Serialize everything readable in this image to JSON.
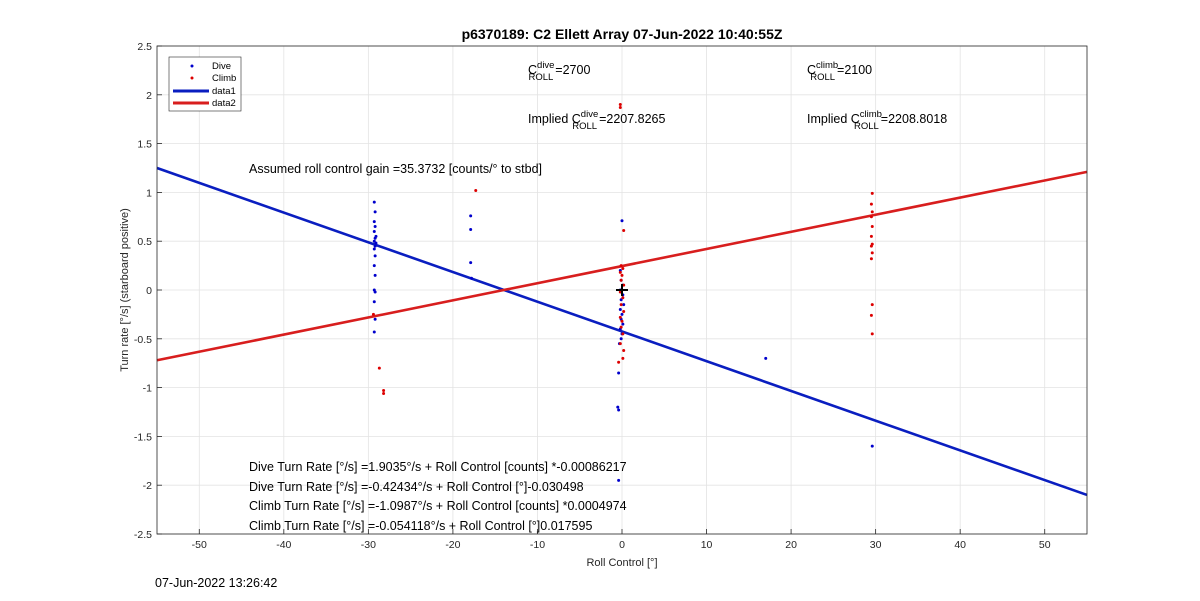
{
  "chart_data": {
    "type": "scatter",
    "title": "p6370189: C2 Ellett Array 07-Jun-2022 10:40:55Z",
    "xlabel": "Roll Control [°]",
    "ylabel": "Turn rate [°/s] (starboard positive)",
    "xlim": [
      -55,
      55
    ],
    "ylim": [
      -2.5,
      2.5
    ],
    "xticks": [
      -50,
      -40,
      -30,
      -20,
      -10,
      0,
      10,
      20,
      30,
      40,
      50
    ],
    "yticks": [
      -2.5,
      -2,
      -1.5,
      -1,
      -0.5,
      0,
      0.5,
      1,
      1.5,
      2,
      2.5
    ],
    "grid": true,
    "legend_position": "top-left",
    "legend": [
      {
        "label": "Dive",
        "kind": "marker",
        "color": "#0000cc"
      },
      {
        "label": "Climb",
        "kind": "marker",
        "color": "#dd0000"
      },
      {
        "label": "data1",
        "kind": "line",
        "color": "#0a1ec0"
      },
      {
        "label": "data2",
        "kind": "line",
        "color": "#d81e1e"
      }
    ],
    "series": [
      {
        "name": "Dive",
        "kind": "scatter",
        "color": "#0000cc",
        "points": [
          [
            -29.3,
            0.9
          ],
          [
            -29.2,
            0.8
          ],
          [
            -29.3,
            0.7
          ],
          [
            -29.2,
            0.65
          ],
          [
            -29.3,
            0.6
          ],
          [
            -29.1,
            0.55
          ],
          [
            -29.2,
            0.53
          ],
          [
            -29.3,
            0.5
          ],
          [
            -29.1,
            0.48
          ],
          [
            -29.2,
            0.45
          ],
          [
            -29.3,
            0.42
          ],
          [
            -29.2,
            0.35
          ],
          [
            -29.3,
            0.25
          ],
          [
            -29.2,
            0.15
          ],
          [
            -29.3,
            0.0
          ],
          [
            -29.2,
            -0.02
          ],
          [
            -29.3,
            -0.12
          ],
          [
            -29.2,
            -0.3
          ],
          [
            -29.3,
            -0.43
          ],
          [
            -17.9,
            0.76
          ],
          [
            -17.9,
            0.62
          ],
          [
            -17.9,
            0.28
          ],
          [
            -17.8,
            0.12
          ],
          [
            0.0,
            0.71
          ],
          [
            -0.2,
            0.2
          ],
          [
            -0.1,
            0.1
          ],
          [
            0.1,
            0.05
          ],
          [
            -0.2,
            0.0
          ],
          [
            0.1,
            -0.05
          ],
          [
            -0.1,
            -0.1
          ],
          [
            0.2,
            -0.15
          ],
          [
            -0.2,
            -0.2
          ],
          [
            0.0,
            -0.25
          ],
          [
            -0.1,
            -0.3
          ],
          [
            0.1,
            -0.35
          ],
          [
            -0.2,
            -0.4
          ],
          [
            0.0,
            -0.45
          ],
          [
            -0.1,
            -0.5
          ],
          [
            -0.3,
            -0.55
          ],
          [
            -0.4,
            -0.85
          ],
          [
            -0.5,
            -1.2
          ],
          [
            -0.4,
            -1.23
          ],
          [
            -0.4,
            -1.95
          ],
          [
            17.0,
            -0.7
          ],
          [
            29.6,
            -1.6
          ]
        ]
      },
      {
        "name": "Climb",
        "kind": "scatter",
        "color": "#dd0000",
        "points": [
          [
            -29.4,
            -0.25
          ],
          [
            -28.7,
            -0.8
          ],
          [
            -28.2,
            -1.03
          ],
          [
            -28.2,
            -1.06
          ],
          [
            -17.3,
            1.02
          ],
          [
            -0.2,
            1.9
          ],
          [
            -0.2,
            1.87
          ],
          [
            0.2,
            0.61
          ],
          [
            -0.1,
            0.25
          ],
          [
            0.1,
            0.22
          ],
          [
            -0.2,
            0.18
          ],
          [
            0.0,
            0.15
          ],
          [
            -0.1,
            0.1
          ],
          [
            0.2,
            0.05
          ],
          [
            -0.2,
            -0.02
          ],
          [
            0.1,
            -0.08
          ],
          [
            -0.1,
            -0.15
          ],
          [
            0.2,
            -0.22
          ],
          [
            -0.2,
            -0.28
          ],
          [
            0.0,
            -0.32
          ],
          [
            -0.1,
            -0.38
          ],
          [
            0.1,
            -0.45
          ],
          [
            -0.2,
            -0.55
          ],
          [
            0.2,
            -0.62
          ],
          [
            0.1,
            -0.7
          ],
          [
            -0.4,
            -0.74
          ],
          [
            29.6,
            0.99
          ],
          [
            29.5,
            0.88
          ],
          [
            29.6,
            0.8
          ],
          [
            29.5,
            0.75
          ],
          [
            29.6,
            0.65
          ],
          [
            29.5,
            0.55
          ],
          [
            29.6,
            0.47
          ],
          [
            29.5,
            0.45
          ],
          [
            29.6,
            0.38
          ],
          [
            29.5,
            0.32
          ],
          [
            29.6,
            -0.15
          ],
          [
            29.5,
            -0.26
          ],
          [
            29.6,
            -0.45
          ]
        ]
      },
      {
        "name": "data1",
        "kind": "line",
        "color": "#0a1ec0",
        "x": [
          -55,
          55
        ],
        "y": [
          1.25,
          -2.1
        ]
      },
      {
        "name": "data2",
        "kind": "line",
        "color": "#d81e1e",
        "x": [
          -55,
          55
        ],
        "y": [
          -0.72,
          1.21
        ]
      },
      {
        "name": "",
        "kind": "marker-plus",
        "color": "#000000",
        "points": [
          [
            0,
            0
          ]
        ]
      }
    ],
    "annotations": {
      "c_dive": {
        "prefix": "C",
        "sup": "dive",
        "sub": "ROLL",
        "value": "=2700"
      },
      "c_climb": {
        "prefix": "C",
        "sup": "climb",
        "sub": "ROLL",
        "value": "=2100"
      },
      "implied_dive": {
        "prefix": "Implied C",
        "sup": "dive",
        "sub": "ROLL",
        "value": "=2207.8265"
      },
      "implied_climb": {
        "prefix": "Implied C",
        "sup": "climb",
        "sub": "ROLL",
        "value": "=2208.8018"
      },
      "assumed_gain": "Assumed roll control gain =35.3732 [counts/° to stbd]",
      "fits": [
        "Dive Turn Rate [°/s] =1.9035°/s + Roll Control [counts] *-0.00086217",
        "Dive Turn Rate [°/s] =-0.42434°/s + Roll Control [°]-0.030498",
        "Climb Turn Rate [°/s] =-1.0987°/s + Roll Control [counts] *0.0004974",
        "Climb Turn Rate [°/s] =-0.054118°/s + Roll Control [°]0.017595"
      ]
    }
  },
  "footer": {
    "timestamp": "07-Jun-2022 13:26:42"
  }
}
